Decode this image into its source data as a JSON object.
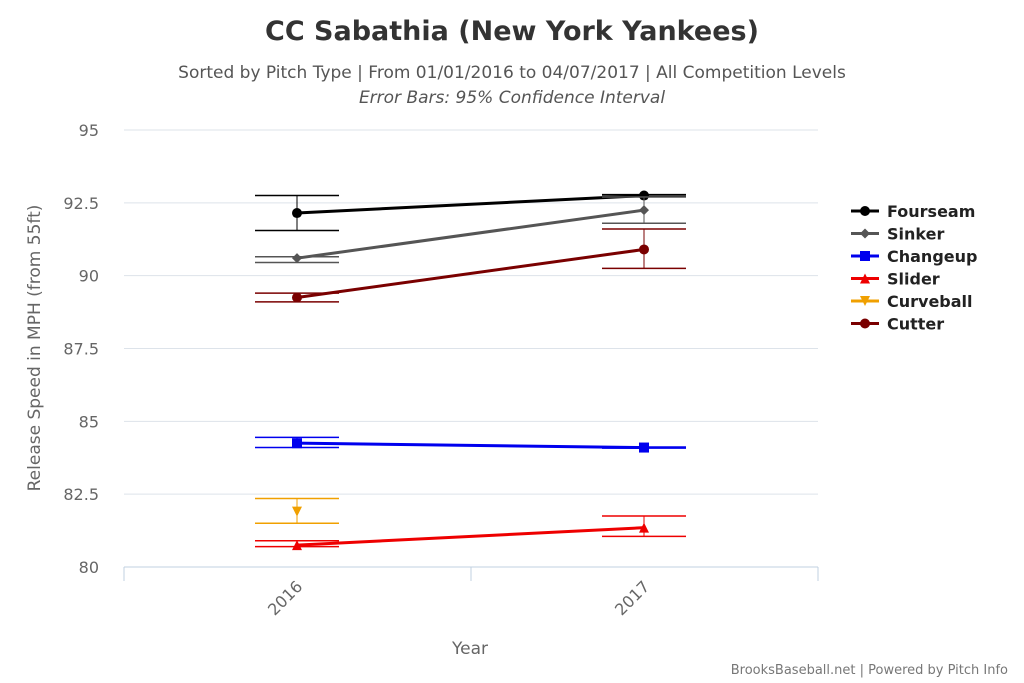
{
  "chart_data": {
    "type": "line",
    "title": "CC Sabathia (New York Yankees)",
    "subtitle": "Sorted by Pitch Type | From 01/01/2016 to 04/07/2017 | All Competition Levels",
    "subtitle2": "Error Bars: 95% Confidence Interval",
    "xlabel": "Year",
    "ylabel": "Release Speed in MPH (from 55ft)",
    "categories": [
      "2016",
      "2017"
    ],
    "ylim": [
      80,
      95
    ],
    "yticks": [
      80,
      82.5,
      85,
      87.5,
      90,
      92.5,
      95
    ],
    "ytick_labels": [
      "80",
      "82.5",
      "85",
      "87.5",
      "90",
      "92.5",
      "95"
    ],
    "grid": true,
    "legend_position": "right",
    "credit": "BrooksBaseball.net | Powered by Pitch Info",
    "series": [
      {
        "name": "Fourseam",
        "color": "#000000",
        "marker": "circle",
        "values": [
          92.15,
          92.75
        ],
        "error": [
          [
            91.55,
            92.75
          ],
          [
            92.72,
            92.78
          ]
        ]
      },
      {
        "name": "Sinker",
        "color": "#555555",
        "marker": "diamond",
        "values": [
          90.6,
          92.25
        ],
        "error": [
          [
            90.45,
            90.65
          ],
          [
            91.8,
            92.7
          ]
        ]
      },
      {
        "name": "Changeup",
        "color": "#0000ee",
        "marker": "square",
        "values": [
          84.25,
          84.1
        ],
        "error": [
          [
            84.1,
            84.45
          ],
          [
            84.08,
            84.12
          ]
        ]
      },
      {
        "name": "Slider",
        "color": "#ee0000",
        "marker": "triangle",
        "values": [
          80.75,
          81.35
        ],
        "error": [
          [
            80.7,
            80.9
          ],
          [
            81.05,
            81.75
          ]
        ]
      },
      {
        "name": "Curveball",
        "color": "#f0a000",
        "marker": "triangle-down",
        "values": [
          81.9,
          null
        ],
        "error": [
          [
            81.5,
            82.35
          ],
          null
        ]
      },
      {
        "name": "Cutter",
        "color": "#7a0000",
        "marker": "circle",
        "values": [
          89.25,
          90.9
        ],
        "error": [
          [
            89.1,
            89.4
          ],
          [
            90.25,
            91.6
          ]
        ]
      }
    ]
  }
}
